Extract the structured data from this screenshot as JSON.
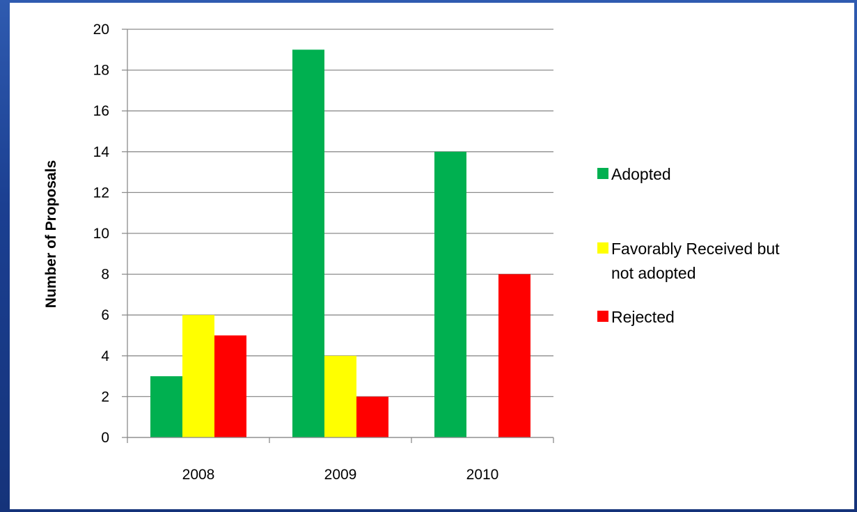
{
  "chart_data": {
    "type": "bar",
    "categories": [
      "2008",
      "2009",
      "2010"
    ],
    "series": [
      {
        "name": "Adopted",
        "color": "#00b050",
        "values": [
          3,
          19,
          14
        ]
      },
      {
        "name": "Favorably Received but not adopted",
        "legend_lines": [
          "Favorably Received but",
          "not adopted"
        ],
        "color": "#ffff00",
        "values": [
          6,
          4,
          0
        ]
      },
      {
        "name": "Rejected",
        "color": "#ff0000",
        "values": [
          5,
          2,
          8
        ]
      }
    ],
    "title": "",
    "xlabel": "",
    "ylabel": "Number of Proposals",
    "ylim": [
      0,
      20
    ],
    "yticks": [
      0,
      2,
      4,
      6,
      8,
      10,
      12,
      14,
      16,
      18,
      20
    ],
    "grid": true,
    "legend": "right"
  }
}
